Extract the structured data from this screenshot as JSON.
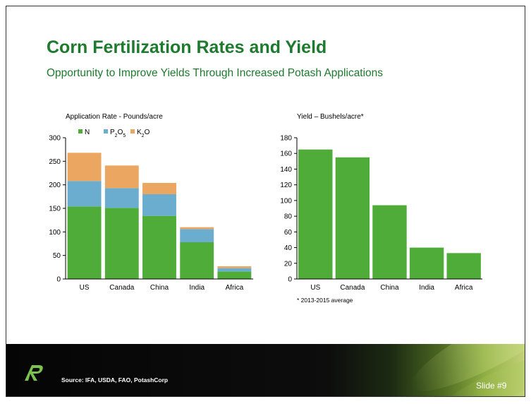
{
  "slide": {
    "title": "Corn Fertilization Rates and Yield",
    "subtitle": "Opportunity to Improve Yields Through Increased Potash Applications"
  },
  "chart_data": [
    {
      "type": "bar",
      "stacked": true,
      "title": "Application Rate - Pounds/acre",
      "categories": [
        "US",
        "Canada",
        "China",
        "India",
        "Africa"
      ],
      "series": [
        {
          "name": "N",
          "label_html": "N",
          "color": "#4fac38",
          "values": [
            154,
            151,
            134,
            78,
            16
          ]
        },
        {
          "name": "P2O5",
          "label_html": "P<tspan baseline-shift=\"sub\" font-size=\"7\">2</tspan>O<tspan baseline-shift=\"sub\" font-size=\"7\">5</tspan>",
          "color": "#6aadcf",
          "values": [
            54,
            42,
            46,
            28,
            7
          ]
        },
        {
          "name": "K2O",
          "label_html": "K<tspan baseline-shift=\"sub\" font-size=\"7\">2</tspan>O",
          "color": "#eba661",
          "values": [
            60,
            48,
            24,
            4,
            4
          ]
        }
      ],
      "legend_entries": [
        "N",
        "P2O5",
        "K2O"
      ],
      "ylim": [
        0,
        300
      ],
      "yticks": [
        0,
        50,
        100,
        150,
        200,
        250,
        300
      ],
      "xlabel": "",
      "ylabel": "",
      "legend": "top-left",
      "grid": false
    },
    {
      "type": "bar",
      "title": "Yield – Bushels/acre*",
      "categories": [
        "US",
        "Canada",
        "China",
        "India",
        "Africa"
      ],
      "series": [
        {
          "name": "Yield",
          "color": "#4fac38",
          "values": [
            165,
            155,
            94,
            40,
            33
          ]
        }
      ],
      "ylim": [
        0,
        180
      ],
      "yticks": [
        0,
        20,
        40,
        60,
        80,
        100,
        120,
        140,
        160,
        180
      ],
      "xlabel": "",
      "ylabel": "",
      "grid": false,
      "footnote": "* 2013-2015 average"
    }
  ],
  "footer": {
    "source": "Source: IFA, USDA, FAO, PotashCorp",
    "slide_number": "Slide #9"
  },
  "colors": {
    "title_green": "#1e7a2e",
    "bar_green": "#4fac38",
    "bar_blue": "#6aadcf",
    "bar_orange": "#eba661"
  }
}
